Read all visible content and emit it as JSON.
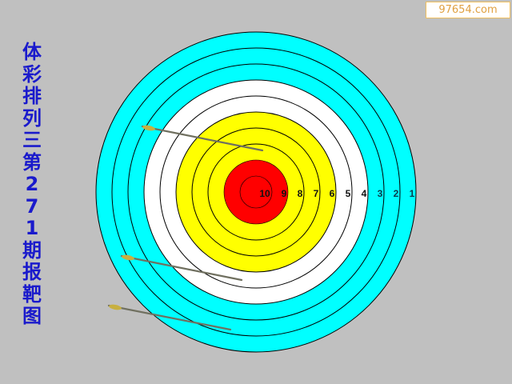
{
  "title": "体彩排列三第271期报靶图",
  "watermark": "97654.com",
  "target": {
    "ring_labels": [
      "10",
      "9",
      "8",
      "7",
      "6",
      "5",
      "4",
      "3",
      "2",
      "1"
    ],
    "colors": {
      "rings_1_3": "#00ffff",
      "rings_4_5": "#ffffff",
      "rings_6_8": "#ffff00",
      "rings_9_10": "#ff0000",
      "background": "#c0c0c0",
      "title": "#1a1acc"
    }
  },
  "arrows_count": 3
}
